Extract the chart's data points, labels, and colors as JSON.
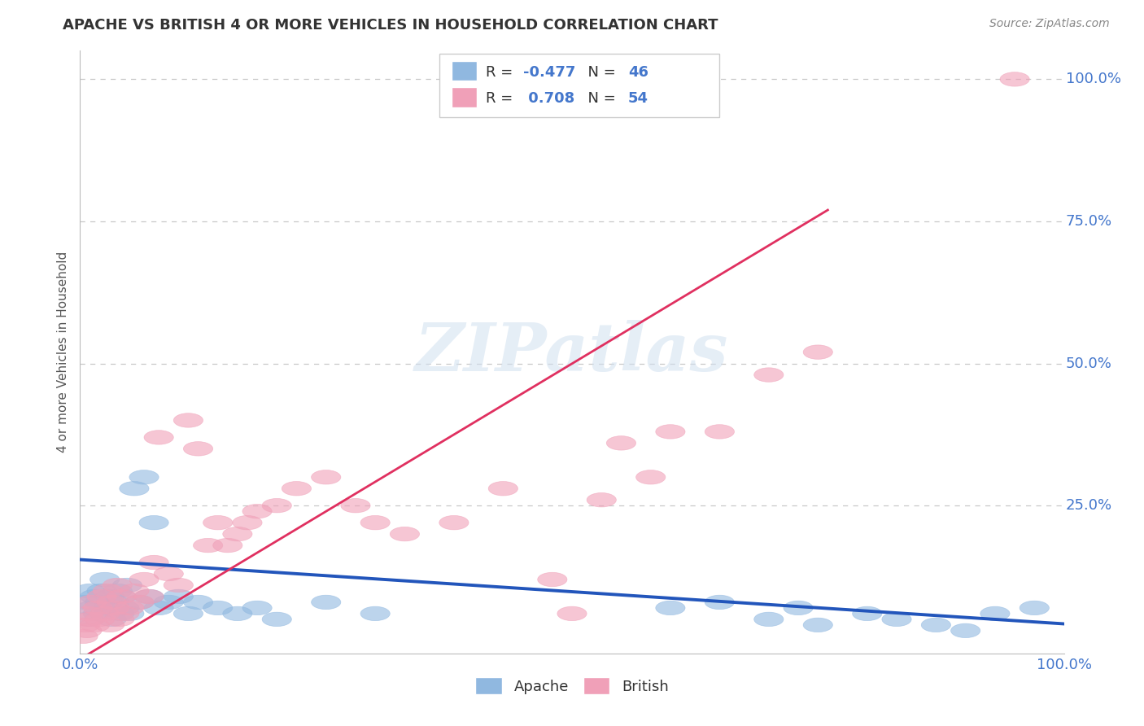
{
  "title": "APACHE VS BRITISH 4 OR MORE VEHICLES IN HOUSEHOLD CORRELATION CHART",
  "source": "Source: ZipAtlas.com",
  "ylabel": "4 or more Vehicles in Household",
  "xlim": [
    0,
    1.0
  ],
  "ylim": [
    -0.01,
    1.05
  ],
  "xticks": [
    0.0,
    0.25,
    0.5,
    0.75,
    1.0
  ],
  "xtick_labels": [
    "0.0%",
    "",
    "",
    "",
    "100.0%"
  ],
  "yticks": [
    0.0,
    0.25,
    0.5,
    0.75,
    1.0
  ],
  "ytick_labels": [
    "",
    "25.0%",
    "50.0%",
    "75.0%",
    "100.0%"
  ],
  "apache_color": "#90b8e0",
  "british_color": "#f0a0b8",
  "apache_line_color": "#2255bb",
  "british_line_color": "#e03060",
  "apache_R": -0.477,
  "apache_N": 46,
  "british_R": 0.708,
  "british_N": 54,
  "watermark": "ZIPatlas",
  "background_color": "#ffffff",
  "grid_color": "#c8c8c8",
  "apache_x": [
    0.005,
    0.008,
    0.01,
    0.012,
    0.015,
    0.018,
    0.02,
    0.022,
    0.025,
    0.028,
    0.03,
    0.032,
    0.035,
    0.038,
    0.04,
    0.042,
    0.045,
    0.048,
    0.05,
    0.055,
    0.06,
    0.065,
    0.07,
    0.075,
    0.08,
    0.09,
    0.1,
    0.11,
    0.12,
    0.14,
    0.16,
    0.18,
    0.2,
    0.25,
    0.3,
    0.6,
    0.65,
    0.7,
    0.73,
    0.75,
    0.8,
    0.83,
    0.87,
    0.9,
    0.93,
    0.97
  ],
  "apache_y": [
    0.08,
    0.05,
    0.1,
    0.07,
    0.09,
    0.06,
    0.08,
    0.1,
    0.12,
    0.07,
    0.09,
    0.05,
    0.08,
    0.1,
    0.06,
    0.09,
    0.07,
    0.11,
    0.06,
    0.28,
    0.08,
    0.3,
    0.09,
    0.22,
    0.07,
    0.08,
    0.09,
    0.06,
    0.08,
    0.07,
    0.06,
    0.07,
    0.05,
    0.08,
    0.06,
    0.07,
    0.08,
    0.05,
    0.07,
    0.04,
    0.06,
    0.05,
    0.04,
    0.03,
    0.06,
    0.07
  ],
  "british_x": [
    0.003,
    0.005,
    0.007,
    0.008,
    0.01,
    0.012,
    0.015,
    0.018,
    0.02,
    0.022,
    0.025,
    0.028,
    0.03,
    0.032,
    0.035,
    0.038,
    0.04,
    0.042,
    0.045,
    0.05,
    0.055,
    0.06,
    0.065,
    0.07,
    0.075,
    0.08,
    0.09,
    0.1,
    0.11,
    0.12,
    0.13,
    0.14,
    0.15,
    0.16,
    0.17,
    0.18,
    0.2,
    0.22,
    0.25,
    0.28,
    0.3,
    0.33,
    0.38,
    0.43,
    0.48,
    0.5,
    0.53,
    0.55,
    0.58,
    0.6,
    0.65,
    0.7,
    0.75,
    0.95
  ],
  "british_y": [
    0.02,
    0.04,
    0.03,
    0.06,
    0.05,
    0.08,
    0.04,
    0.07,
    0.05,
    0.09,
    0.06,
    0.1,
    0.04,
    0.08,
    0.07,
    0.11,
    0.05,
    0.09,
    0.06,
    0.07,
    0.1,
    0.08,
    0.12,
    0.09,
    0.15,
    0.37,
    0.13,
    0.11,
    0.4,
    0.35,
    0.18,
    0.22,
    0.18,
    0.2,
    0.22,
    0.24,
    0.25,
    0.28,
    0.3,
    0.25,
    0.22,
    0.2,
    0.22,
    0.28,
    0.12,
    0.06,
    0.26,
    0.36,
    0.3,
    0.38,
    0.38,
    0.48,
    0.52,
    1.0
  ],
  "apache_line_x0": 0.0,
  "apache_line_x1": 1.0,
  "apache_line_y0": 0.155,
  "apache_line_y1": 0.042,
  "british_line_x0": 0.0,
  "british_line_x1": 0.76,
  "british_line_y0": -0.02,
  "british_line_y1": 0.77
}
